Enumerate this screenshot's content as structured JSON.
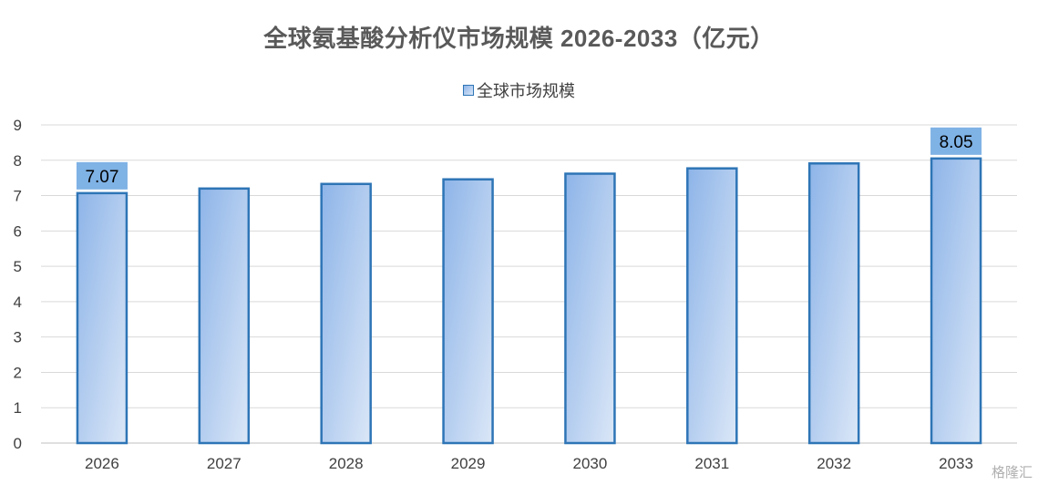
{
  "chart_data": {
    "type": "bar",
    "title": "全球氨基酸分析仪市场规模 2026-2033（亿元）",
    "categories": [
      "2026",
      "2027",
      "2028",
      "2029",
      "2030",
      "2031",
      "2032",
      "2033"
    ],
    "series": [
      {
        "name": "全球市场规模",
        "values": [
          7.07,
          7.2,
          7.33,
          7.46,
          7.62,
          7.77,
          7.91,
          8.05
        ]
      }
    ],
    "data_labels": [
      {
        "index": 0,
        "text": "7.07"
      },
      {
        "index": 7,
        "text": "8.05"
      }
    ],
    "yticks": [
      "0",
      "1",
      "2",
      "3",
      "4",
      "5",
      "6",
      "7",
      "8",
      "9"
    ],
    "ylim": [
      0,
      9
    ],
    "grid": true,
    "legend_position": "top",
    "colors": {
      "bar_fill_start": "#8db4e8",
      "bar_fill_end": "#dbe7f7",
      "bar_border": "#2e75b6",
      "label_bg": "#7fb2e5",
      "grid": "#d9d9d9"
    }
  },
  "watermark": "格隆汇"
}
